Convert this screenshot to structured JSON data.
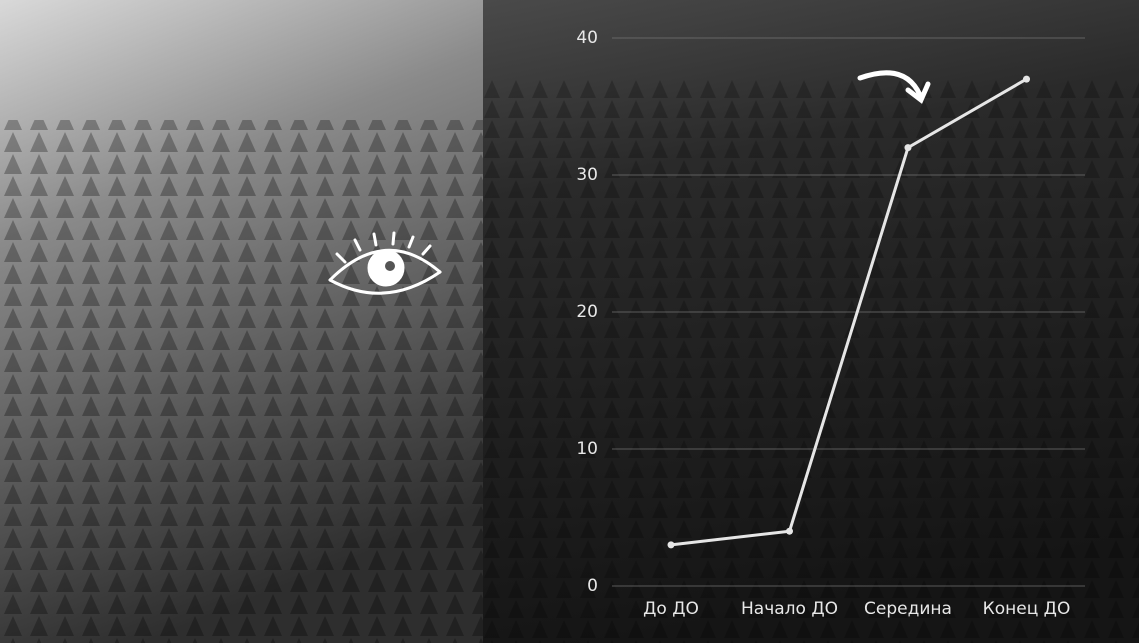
{
  "chart_data": {
    "type": "line",
    "categories": [
      "До ДО",
      "Начало ДО",
      "Середина",
      "Конец ДО"
    ],
    "series": [
      {
        "color": "#e6e6e6",
        "values": [
          3,
          4,
          32,
          37
        ]
      }
    ],
    "ylim": [
      0,
      40
    ],
    "yticks": [
      0,
      10,
      20,
      30,
      40
    ],
    "grid": true
  }
}
